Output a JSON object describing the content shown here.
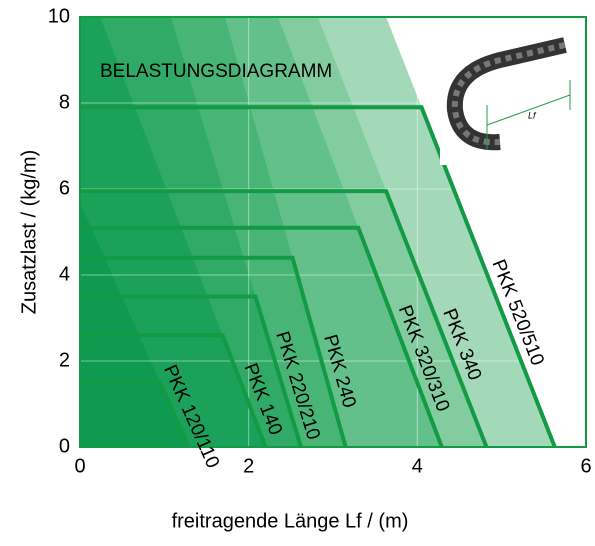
{
  "chart_data": {
    "type": "line",
    "annotation": "BELASTUNGSDIAGRAMM",
    "image_label": "Lf",
    "x_label": "freitragende Länge Lf / (m)",
    "y_label": "Zusatzlast / (kg/m)",
    "xlim": [
      0,
      6
    ],
    "xticks": [
      0,
      2,
      4,
      6
    ],
    "ylim": [
      0,
      10
    ],
    "yticks": [
      0,
      2,
      4,
      6,
      8,
      10
    ],
    "grid": true,
    "series": [
      {
        "name": "PKK 520/510",
        "color": "#129a45",
        "fill": "#a3d9b8",
        "x": [
          0,
          4.05,
          5.63
        ],
        "values": [
          7.9,
          7.9,
          0
        ]
      },
      {
        "name": "PKK 340",
        "color": "#129a45",
        "fill": "#82cca0",
        "x": [
          0,
          3.63,
          4.82
        ],
        "values": [
          5.95,
          5.95,
          0
        ]
      },
      {
        "name": "PKK 320/310",
        "color": "#129a45",
        "fill": "#63c08a",
        "x": [
          0,
          3.3,
          4.29
        ],
        "values": [
          5.1,
          5.1,
          0
        ]
      },
      {
        "name": "PKK 240",
        "color": "#129a45",
        "fill": "#48b577",
        "x": [
          0,
          2.52,
          3.15
        ],
        "values": [
          4.4,
          4.4,
          0
        ]
      },
      {
        "name": "PKK 220/210",
        "color": "#129a45",
        "fill": "#30aa66",
        "x": [
          0,
          2.08,
          2.62
        ],
        "values": [
          3.5,
          3.5,
          0
        ]
      },
      {
        "name": "PKK 140",
        "color": "#129a45",
        "fill": "#1ca15a",
        "x": [
          0,
          1.69,
          2.2
        ],
        "values": [
          2.6,
          2.6,
          0
        ]
      },
      {
        "name": "PKK 120/110",
        "color": "#129a45",
        "fill": "#0e9a50",
        "x": [
          0,
          0.95,
          1.29
        ],
        "values": [
          1.5,
          1.5,
          0
        ]
      }
    ]
  }
}
